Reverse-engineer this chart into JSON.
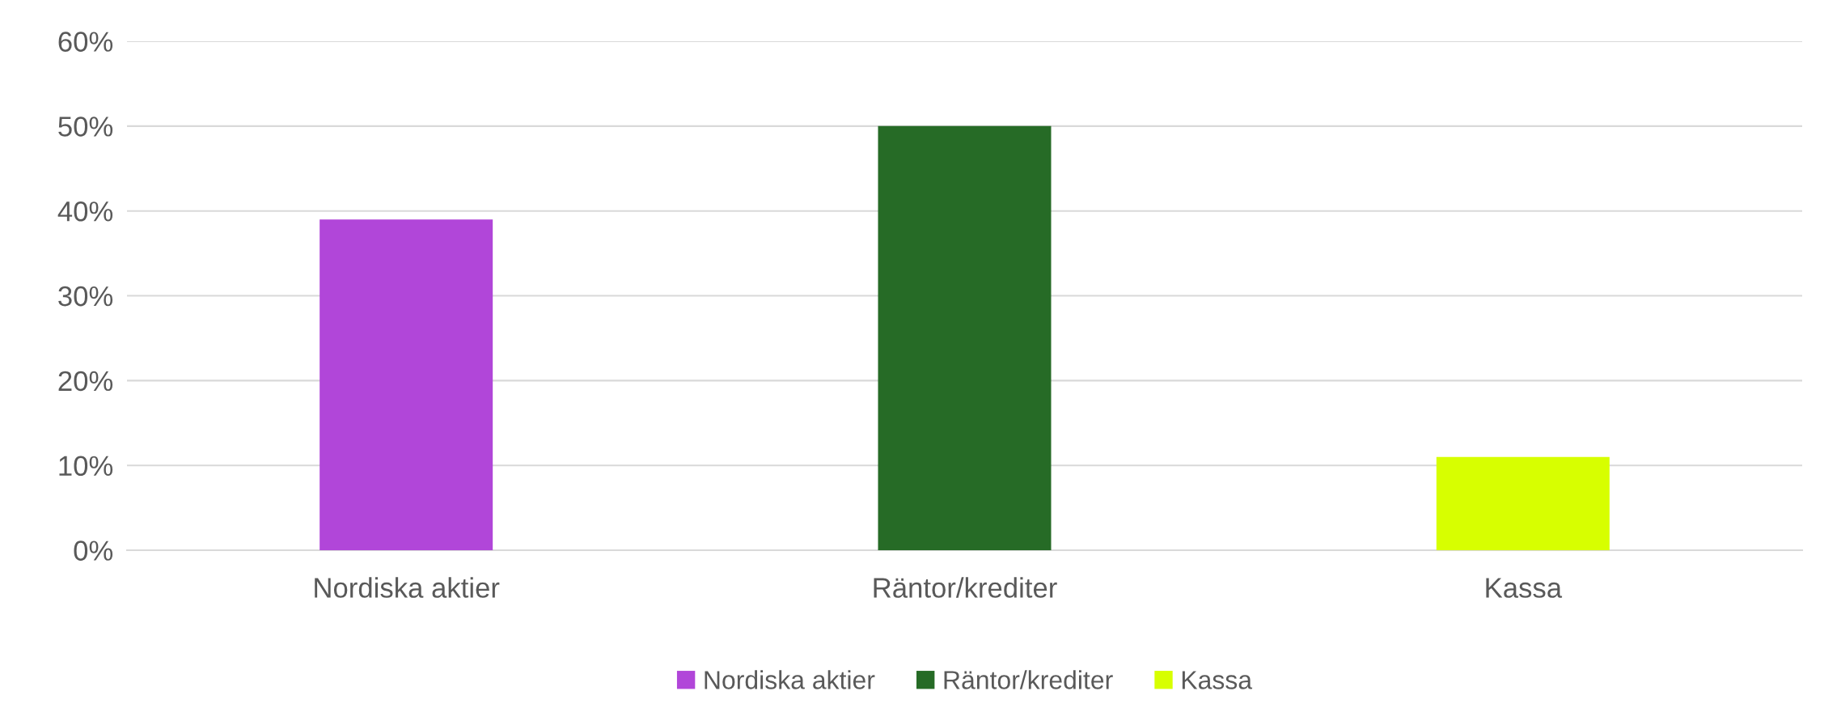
{
  "chart_data": {
    "type": "bar",
    "categories": [
      "Nordiska aktier",
      "Räntor/krediter",
      "Kassa"
    ],
    "series": [
      {
        "name": "Nordiska aktier",
        "color": "#b146d9",
        "values": [
          39,
          null,
          null
        ]
      },
      {
        "name": "Räntor/krediter",
        "color": "#266b26",
        "values": [
          null,
          50,
          null
        ]
      },
      {
        "name": "Kassa",
        "color": "#d7ff00",
        "values": [
          null,
          null,
          11
        ]
      }
    ],
    "ylim": [
      0,
      60
    ],
    "yticks": [
      {
        "value": 0,
        "label": "0%"
      },
      {
        "value": 10,
        "label": "10%"
      },
      {
        "value": 20,
        "label": "20%"
      },
      {
        "value": 30,
        "label": "30%"
      },
      {
        "value": 40,
        "label": "40%"
      },
      {
        "value": 50,
        "label": "50%"
      },
      {
        "value": 60,
        "label": "60%"
      }
    ],
    "grid": "y",
    "legend": "bottom"
  }
}
